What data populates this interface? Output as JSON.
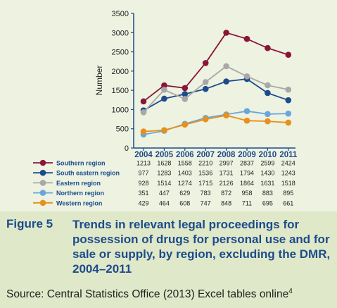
{
  "chart_data": {
    "type": "line",
    "ylabel": "Number",
    "ylim": [
      0,
      3500
    ],
    "yticks": [
      0,
      500,
      1000,
      1500,
      2000,
      2500,
      3000,
      3500
    ],
    "grid": false,
    "x": [
      "2004",
      "2005",
      "2006",
      "2007",
      "2008",
      "2009",
      "2010",
      "2011"
    ],
    "series": [
      {
        "name": "Southern region",
        "color": "#8b1538",
        "values": [
          1213,
          1628,
          1558,
          2210,
          2997,
          2837,
          2599,
          2424
        ]
      },
      {
        "name": "South eastern region",
        "color": "#1d4b8c",
        "values": [
          977,
          1283,
          1403,
          1536,
          1731,
          1794,
          1430,
          1243
        ]
      },
      {
        "name": "Eastern region",
        "color": "#a8a8a8",
        "values": [
          928,
          1514,
          1274,
          1715,
          2126,
          1864,
          1631,
          1518
        ]
      },
      {
        "name": "Northern region",
        "color": "#6aa6dc",
        "values": [
          351,
          447,
          629,
          783,
          872,
          958,
          883,
          895
        ]
      },
      {
        "name": "Western region",
        "color": "#e8901c",
        "values": [
          429,
          464,
          608,
          747,
          848,
          711,
          695,
          661
        ]
      }
    ]
  },
  "caption": {
    "label": "Figure 5",
    "title": "Trends in relevant legal proceedings for possession of drugs for personal use and for sale or supply, by region, excluding the DMR, 2004–2011",
    "source": "Source: Central Statistics Office (2013) Excel tables online",
    "source_note": "4"
  }
}
